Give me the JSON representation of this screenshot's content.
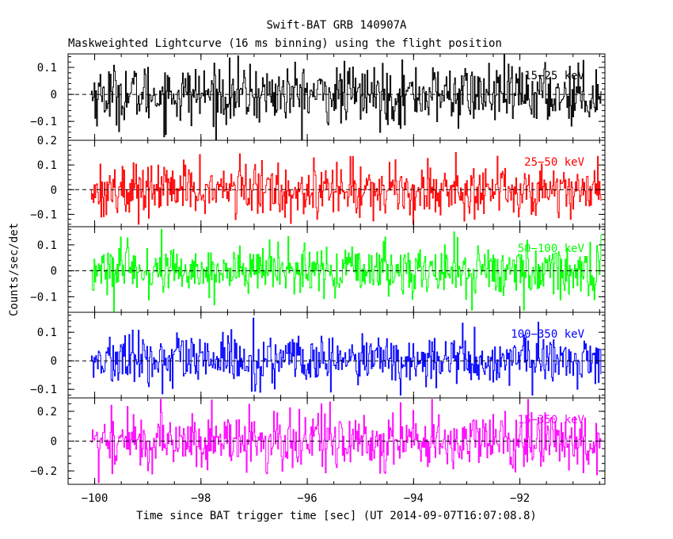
{
  "chart_data": {
    "type": "line",
    "title": "Swift-BAT GRB 140907A",
    "subtitle": "Maskweighted Lightcurve (16 ms binning) using the flight position",
    "xlabel": "Time since BAT trigger time [sec] (UT 2014-09-07T16:07:08.8)",
    "ylabel": "Counts/sec/det",
    "xlim": [
      -100.5,
      -90.4
    ],
    "x_ticks": [
      {
        "value": -100,
        "label": "−100"
      },
      {
        "value": -98,
        "label": "−98"
      },
      {
        "value": -96,
        "label": "−96"
      },
      {
        "value": -94,
        "label": "−94"
      },
      {
        "value": -92,
        "label": "−92"
      }
    ],
    "time_range": [
      -100.06,
      -90.46
    ],
    "bin_size_sec": 0.016,
    "panels": [
      {
        "band": "15−25 keV",
        "color": "#000000",
        "ylim": [
          -0.17,
          0.15
        ],
        "amplitude": 0.055,
        "peak_range": [
          -0.17,
          0.15
        ],
        "y_ticks": [
          {
            "value": 0.1,
            "label": "0.1"
          },
          {
            "value": 0,
            "label": "0"
          },
          {
            "value": -0.1,
            "label": "−0.1"
          }
        ]
      },
      {
        "band": "25−50 keV",
        "color": "#ff0000",
        "ylim": [
          -0.15,
          0.2
        ],
        "amplitude": 0.055,
        "peak_range": [
          -0.14,
          0.19
        ],
        "y_ticks": [
          {
            "value": 0.2,
            "label": "0.2"
          },
          {
            "value": 0.1,
            "label": "0.1"
          },
          {
            "value": 0,
            "label": "0"
          },
          {
            "value": -0.1,
            "label": "−0.1"
          }
        ]
      },
      {
        "band": "50−100 keV",
        "color": "#00ff00",
        "ylim": [
          -0.16,
          0.17
        ],
        "amplitude": 0.05,
        "peak_range": [
          -0.16,
          0.16
        ],
        "y_ticks": [
          {
            "value": 0.1,
            "label": "0.1"
          },
          {
            "value": 0,
            "label": "0"
          },
          {
            "value": -0.1,
            "label": "−0.1"
          }
        ]
      },
      {
        "band": "100−350 keV",
        "color": "#0000ff",
        "ylim": [
          -0.13,
          0.17
        ],
        "amplitude": 0.045,
        "peak_range": [
          -0.12,
          0.15
        ],
        "y_ticks": [
          {
            "value": 0.1,
            "label": "0.1"
          },
          {
            "value": 0,
            "label": "0"
          },
          {
            "value": -0.1,
            "label": "−0.1"
          }
        ]
      },
      {
        "band": "15−350 keV",
        "color": "#ff00ff",
        "ylim": [
          -0.29,
          0.29
        ],
        "amplitude": 0.1,
        "peak_range": [
          -0.28,
          0.28
        ],
        "y_ticks": [
          {
            "value": 0.2,
            "label": "0.2"
          },
          {
            "value": 0,
            "label": "0"
          },
          {
            "value": -0.2,
            "label": "−0.2"
          }
        ]
      }
    ],
    "reference_line_y": 0,
    "grid": false,
    "legend": "band labels at top-right of each panel"
  }
}
